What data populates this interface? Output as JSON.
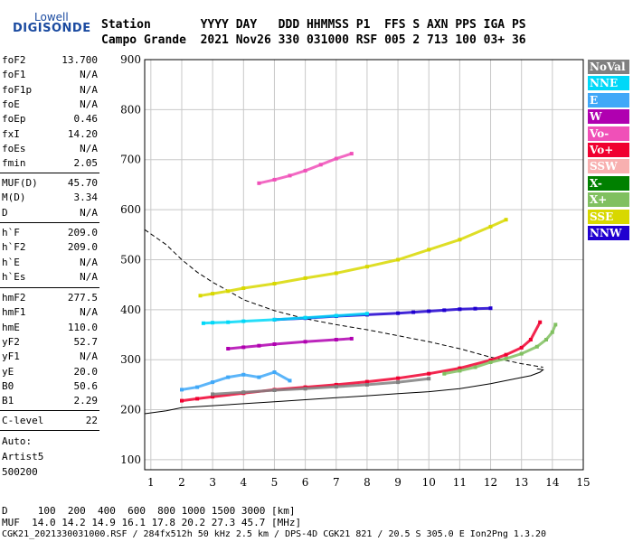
{
  "logo": {
    "top": "Lowell",
    "main": "DIGISONDE"
  },
  "header": {
    "row1": "Station       YYYY DAY   DDD HHMMSS P1  FFS S AXN PPS IGA PS",
    "row2": "Campo Grande  2021 Nov26 330 031000 RSF 005 2 713 100 03+ 36"
  },
  "params": {
    "group1": [
      {
        "name": "foF2",
        "value": "13.700"
      },
      {
        "name": "foF1",
        "value": "N/A"
      },
      {
        "name": "foF1p",
        "value": "N/A"
      },
      {
        "name": "foE",
        "value": "N/A"
      },
      {
        "name": "foEp",
        "value": "0.46"
      },
      {
        "name": "fxI",
        "value": "14.20"
      },
      {
        "name": "foEs",
        "value": "N/A"
      },
      {
        "name": "fmin",
        "value": "2.05"
      }
    ],
    "group2": [
      {
        "name": "MUF(D)",
        "value": "45.70"
      },
      {
        "name": "M(D)",
        "value": "3.34"
      },
      {
        "name": "D",
        "value": "N/A"
      }
    ],
    "group3": [
      {
        "name": "h`F",
        "value": "209.0"
      },
      {
        "name": "h`F2",
        "value": "209.0"
      },
      {
        "name": "h`E",
        "value": "N/A"
      },
      {
        "name": "h`Es",
        "value": "N/A"
      }
    ],
    "group4": [
      {
        "name": "hmF2",
        "value": "277.5"
      },
      {
        "name": "hmF1",
        "value": "N/A"
      },
      {
        "name": "hmE",
        "value": "110.0"
      },
      {
        "name": "yF2",
        "value": "52.7"
      },
      {
        "name": "yF1",
        "value": "N/A"
      },
      {
        "name": "yE",
        "value": "20.0"
      },
      {
        "name": "B0",
        "value": "50.6"
      },
      {
        "name": "B1",
        "value": "2.29"
      }
    ],
    "group5": [
      {
        "name": "C-level",
        "value": "22"
      }
    ]
  },
  "auto": {
    "line1": "Auto:",
    "line2": "Artist5",
    "line3": "500200"
  },
  "footer": {
    "line1": "D     100  200  400  600  800 1000 1500 3000 [km]",
    "line2": "MUF  14.0 14.2 14.9 16.1 17.8 20.2 27.3 45.7 [MHz]",
    "line3": "CGK21_2021330031000.RSF / 284fx512h 50 kHz 2.5 km / DPS-4D CGK21 821 / 20.5 S 305.0 E Ion2Png 1.3.20"
  },
  "legend": [
    {
      "label": "NoVal",
      "color": "#808080"
    },
    {
      "label": "NNE",
      "color": "#00d8f8"
    },
    {
      "label": "E",
      "color": "#40a8f8"
    },
    {
      "label": "W",
      "color": "#b000b0"
    },
    {
      "label": "Vo-",
      "color": "#f050b8"
    },
    {
      "label": "Vo+",
      "color": "#f00030"
    },
    {
      "label": "SSW",
      "color": "#f8b0b0"
    },
    {
      "label": "X-",
      "color": "#008000"
    },
    {
      "label": "X+",
      "color": "#80c060"
    },
    {
      "label": "SSE",
      "color": "#d8d800"
    },
    {
      "label": "NNW",
      "color": "#2000d0"
    }
  ],
  "chart_data": {
    "type": "scatter",
    "xlim": [
      0.8,
      15
    ],
    "ylim": [
      80,
      900
    ],
    "x_ticks": [
      "1",
      "2",
      "3",
      "4",
      "5",
      "6",
      "7",
      "8",
      "9",
      "10",
      "11",
      "12",
      "13",
      "14",
      "15"
    ],
    "y_ticks": [
      "100",
      "200",
      "300",
      "400",
      "500",
      "600",
      "700",
      "800",
      "900"
    ],
    "grid": true,
    "legend_position": "right",
    "series": [
      {
        "name": "Vo+",
        "color": "#f00030",
        "x": [
          2.0,
          2.5,
          3.0,
          4.0,
          5.0,
          6.0,
          7.0,
          8.0,
          9.0,
          10.0,
          11.0,
          12.0,
          12.5,
          13.0,
          13.3,
          13.6
        ],
        "y": [
          218,
          222,
          226,
          233,
          240,
          245,
          250,
          256,
          263,
          272,
          283,
          299,
          310,
          324,
          340,
          375
        ]
      },
      {
        "name": "X+",
        "color": "#80c060",
        "x": [
          10.5,
          11.0,
          11.5,
          12.0,
          12.5,
          13.0,
          13.5,
          13.8,
          14.0,
          14.1
        ],
        "y": [
          272,
          278,
          285,
          295,
          302,
          312,
          326,
          340,
          355,
          370
        ]
      },
      {
        "name": "SSE",
        "color": "#d8d800",
        "x": [
          2.6,
          3.0,
          3.5,
          4.0,
          5.0,
          6.0,
          7.0,
          8.0,
          9.0,
          10.0,
          11.0,
          12.0,
          12.5
        ],
        "y": [
          428,
          432,
          437,
          443,
          452,
          463,
          473,
          486,
          500,
          520,
          540,
          566,
          580
        ]
      },
      {
        "name": "NNW",
        "color": "#2000d0",
        "x": [
          5.0,
          6.0,
          7.0,
          8.0,
          9.0,
          9.5,
          10.0,
          10.5,
          11.0,
          11.5,
          12.0
        ],
        "y": [
          380,
          383,
          387,
          390,
          393,
          395,
          397,
          399,
          401,
          402,
          403
        ]
      },
      {
        "name": "NNE",
        "color": "#00d8f8",
        "x": [
          2.7,
          3.0,
          3.5,
          4.0,
          5.0,
          6.0,
          7.0,
          8.0
        ],
        "y": [
          373,
          374,
          375,
          377,
          380,
          384,
          388,
          392
        ]
      },
      {
        "name": "E",
        "color": "#40a8f8",
        "x": [
          2.0,
          2.5,
          3.0,
          3.5,
          4.0,
          4.5,
          5.0,
          5.5
        ],
        "y": [
          240,
          245,
          255,
          265,
          270,
          265,
          275,
          258
        ]
      },
      {
        "name": "W",
        "color": "#b000b0",
        "x": [
          3.5,
          4.0,
          4.5,
          5.0,
          6.0,
          7.0,
          7.5
        ],
        "y": [
          322,
          325,
          328,
          331,
          336,
          340,
          342
        ]
      },
      {
        "name": "Vo-",
        "color": "#f050b8",
        "x": [
          4.5,
          5.0,
          5.5,
          6.0,
          6.5,
          7.0,
          7.5
        ],
        "y": [
          653,
          660,
          668,
          678,
          690,
          702,
          712
        ]
      },
      {
        "name": "NoVal",
        "color": "#808080",
        "x": [
          3.0,
          4.0,
          5.0,
          6.0,
          7.0,
          8.0,
          9.0,
          10.0
        ],
        "y": [
          231,
          235,
          239,
          242,
          246,
          250,
          255,
          262
        ]
      }
    ],
    "profile_solid": {
      "x": [
        0.8,
        1.5,
        2.0,
        3.0,
        4.0,
        5.0,
        6.0,
        7.0,
        8.0,
        9.0,
        10.0,
        11.0,
        12.0,
        12.8,
        13.3,
        13.6,
        13.7,
        13.5
      ],
      "y": [
        192,
        198,
        204,
        208,
        212,
        216,
        220,
        224,
        228,
        232,
        236,
        242,
        252,
        262,
        268,
        275,
        280,
        282
      ]
    },
    "profile_dashed": {
      "x": [
        0.8,
        1.5,
        2.0,
        2.5,
        3.0,
        3.5,
        4.0,
        5.0,
        6.0,
        7.0,
        8.0,
        9.0,
        10.0,
        11.0,
        12.0,
        13.0,
        13.7
      ],
      "y": [
        560,
        530,
        500,
        475,
        455,
        438,
        420,
        398,
        382,
        370,
        360,
        348,
        336,
        322,
        305,
        292,
        285
      ]
    }
  }
}
